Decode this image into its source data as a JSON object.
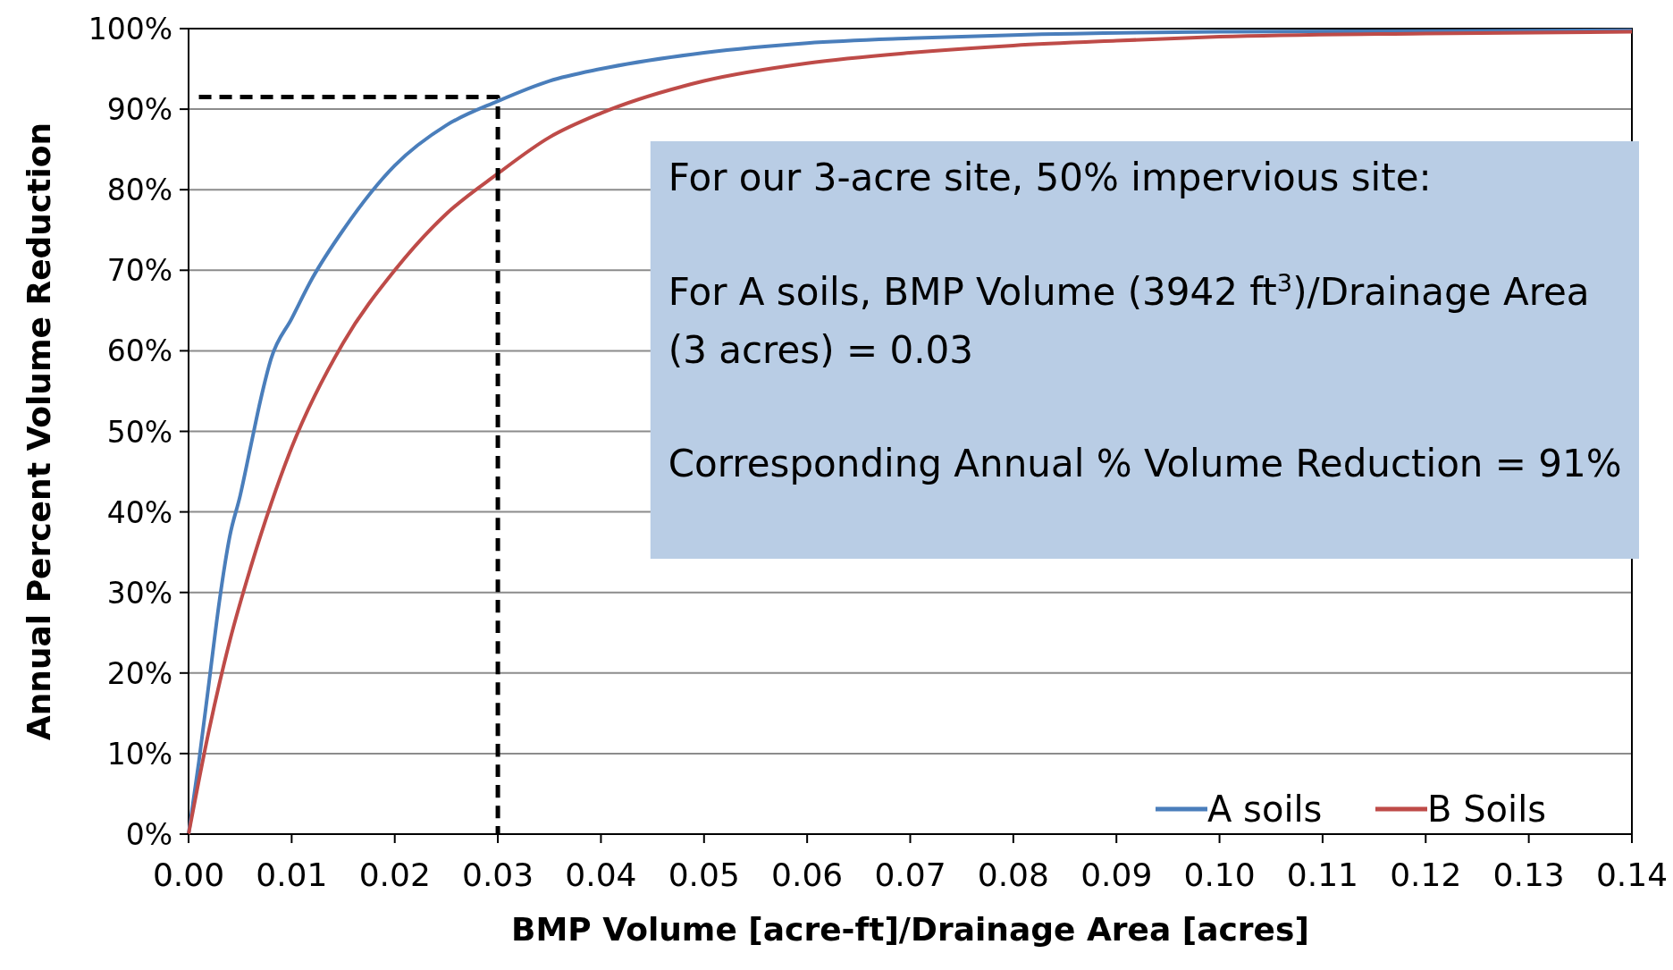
{
  "chart_data": {
    "type": "line",
    "xlabel": "BMP Volume [acre-ft]/Drainage Area [acres]",
    "ylabel": "Annual Percent Volume Reduction",
    "series": [
      {
        "name": "A soils",
        "color": "#4a7ebb",
        "x": [
          0,
          0.001,
          0.002,
          0.003,
          0.004,
          0.005,
          0.006,
          0.007,
          0.008,
          0.01,
          0.012,
          0.015,
          0.02,
          0.025,
          0.03,
          0.035,
          0.04,
          0.05,
          0.06,
          0.07,
          0.08,
          0.1,
          0.12,
          0.14
        ],
        "values": [
          0,
          9,
          19,
          29,
          37,
          42,
          48,
          54,
          59,
          64,
          69,
          75,
          83,
          88,
          91,
          93.5,
          95,
          97,
          98.2,
          98.8,
          99.2,
          99.6,
          99.7,
          99.8
        ]
      },
      {
        "name": "B Soils",
        "color": "#be4b48",
        "x": [
          0,
          0.002,
          0.004,
          0.006,
          0.008,
          0.01,
          0.015,
          0.02,
          0.025,
          0.03,
          0.035,
          0.04,
          0.05,
          0.06,
          0.07,
          0.08,
          0.09,
          0.1,
          0.12,
          0.14
        ],
        "values": [
          0,
          13,
          24,
          33,
          41,
          48,
          61,
          70,
          77,
          82,
          86.5,
          89.5,
          93.5,
          95.7,
          97,
          97.9,
          98.5,
          99,
          99.4,
          99.6
        ]
      },
      {
        "type": "line",
        "color": "#000000",
        "line_style": "dashed",
        "x": [
          0.001,
          0.03,
          0.03
        ],
        "values": [
          91.5,
          91.5,
          0
        ]
      }
    ],
    "xlim": [
      0,
      0.14
    ],
    "xticks": [
      {
        "value": 0,
        "label": "0.00"
      },
      0.01,
      0.02,
      0.03,
      0.04,
      0.05,
      0.06,
      0.07,
      0.08,
      0.09,
      {
        "value": 0.1,
        "label": "0.10"
      },
      0.11,
      0.12,
      0.13,
      0.14
    ],
    "ylim": [
      0,
      100
    ],
    "yticks": [
      {
        "value": 0,
        "label": "0%"
      },
      {
        "value": 10,
        "label": "10%"
      },
      {
        "value": 20,
        "label": "20%"
      },
      {
        "value": 30,
        "label": "30%"
      },
      {
        "value": 40,
        "label": "40%"
      },
      {
        "value": 50,
        "label": "50%"
      },
      {
        "value": 60,
        "label": "60%"
      },
      {
        "value": 70,
        "label": "70%"
      },
      {
        "value": 80,
        "label": "80%"
      },
      {
        "value": 90,
        "label": "90%"
      },
      {
        "value": 100,
        "label": "100%"
      }
    ],
    "grid": "y",
    "legend": "bottom right",
    "marker": "none",
    "line_style": "solid",
    "annotations": [
      "For our 3-acre site, 50% impervious site:",
      "For A soils, BMP Volume (3942 ft$^{3}$)/Drainage Area",
      "(3 acres) = 0.03",
      "Corresponding Annual % Volume Reduction = 91%"
    ]
  }
}
